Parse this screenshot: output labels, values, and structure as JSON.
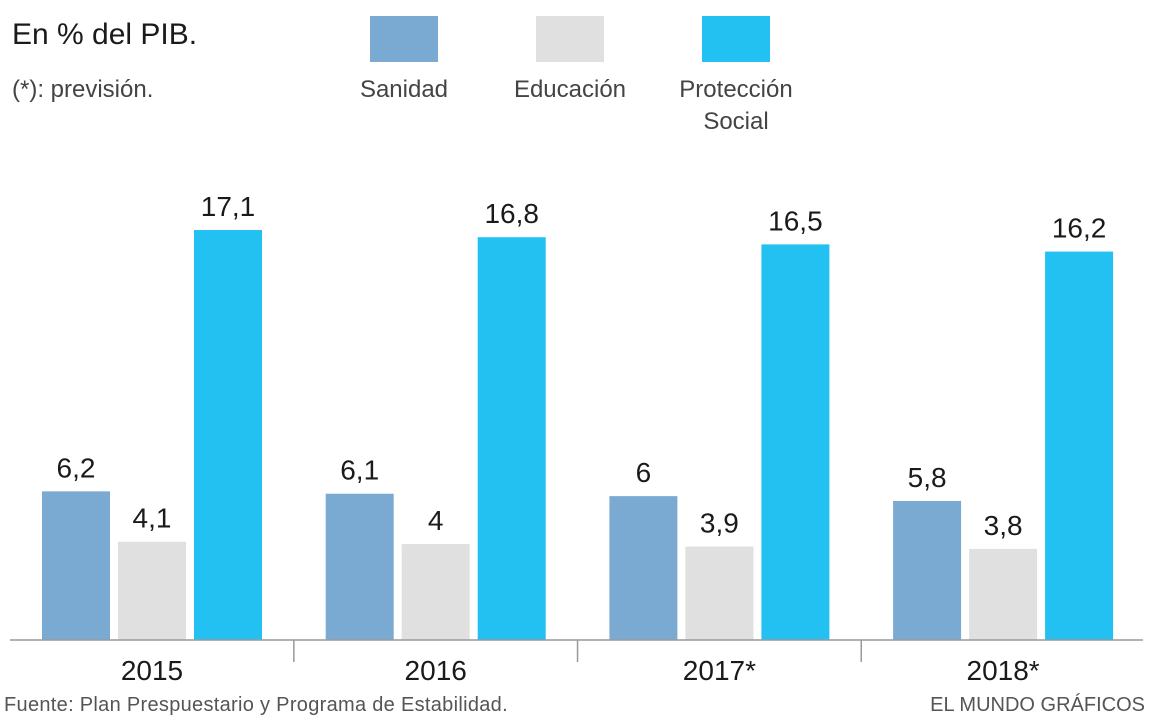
{
  "header": {
    "title": "En % del PIB.",
    "note": "(*): previsión."
  },
  "legend": [
    {
      "label": "Sanidad",
      "color": "#7aaad2"
    },
    {
      "label": "Educación",
      "color": "#e0e0e0"
    },
    {
      "label": "Protección\nSocial",
      "color": "#23c0f2"
    }
  ],
  "chart_data": {
    "type": "bar",
    "title": "En % del PIB.",
    "categories": [
      "2015",
      "2016",
      "2017*",
      "2018*"
    ],
    "series": [
      {
        "name": "Sanidad",
        "color": "#7aaad2",
        "values": [
          6.2,
          6.1,
          6,
          5.8
        ],
        "labels": [
          "6,2",
          "6,1",
          "6",
          "5,8"
        ]
      },
      {
        "name": "Educación",
        "color": "#e0e0e0",
        "values": [
          4.1,
          4,
          3.9,
          3.8
        ],
        "labels": [
          "4,1",
          "4",
          "3,9",
          "3,8"
        ]
      },
      {
        "name": "Protección Social",
        "color": "#23c0f2",
        "values": [
          17.1,
          16.8,
          16.5,
          16.2
        ],
        "labels": [
          "17,1",
          "16,8",
          "16,5",
          "16,2"
        ]
      }
    ],
    "ylim": [
      0,
      17.1
    ],
    "grid": false,
    "legend_position": "top"
  },
  "footer": {
    "source": "Fuente: Plan Prespuestario y Programa de Estabilidad.",
    "credit": "EL MUNDO GRÁFICOS"
  }
}
